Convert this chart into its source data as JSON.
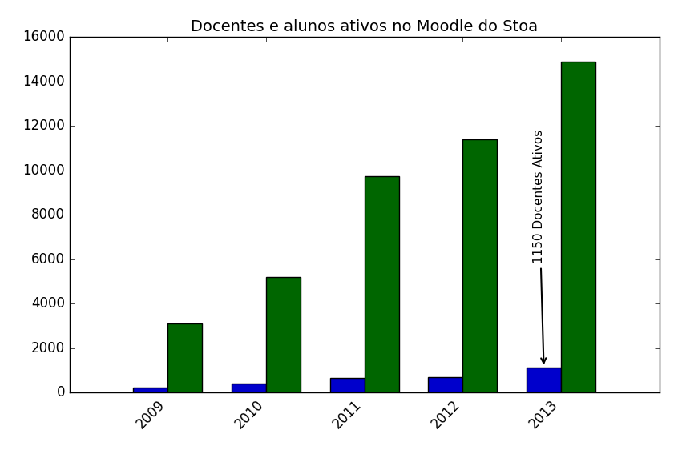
{
  "title": "Docentes e alunos ativos no Moodle do Stoa",
  "years": [
    "2009",
    "2010",
    "2011",
    "2012",
    "2013"
  ],
  "docentes": [
    250,
    400,
    650,
    700,
    1150
  ],
  "alunos": [
    3100,
    5200,
    9750,
    11400,
    14900
  ],
  "bar_color_docentes": "#0000cc",
  "bar_color_alunos": "#006600",
  "ylim": [
    0,
    16000
  ],
  "yticks": [
    0,
    2000,
    4000,
    6000,
    8000,
    10000,
    12000,
    14000,
    16000
  ],
  "annotation_text": "1150 Docentes Ativos",
  "bar_width": 0.35,
  "figsize": [
    8.66,
    5.77
  ],
  "dpi": 100
}
